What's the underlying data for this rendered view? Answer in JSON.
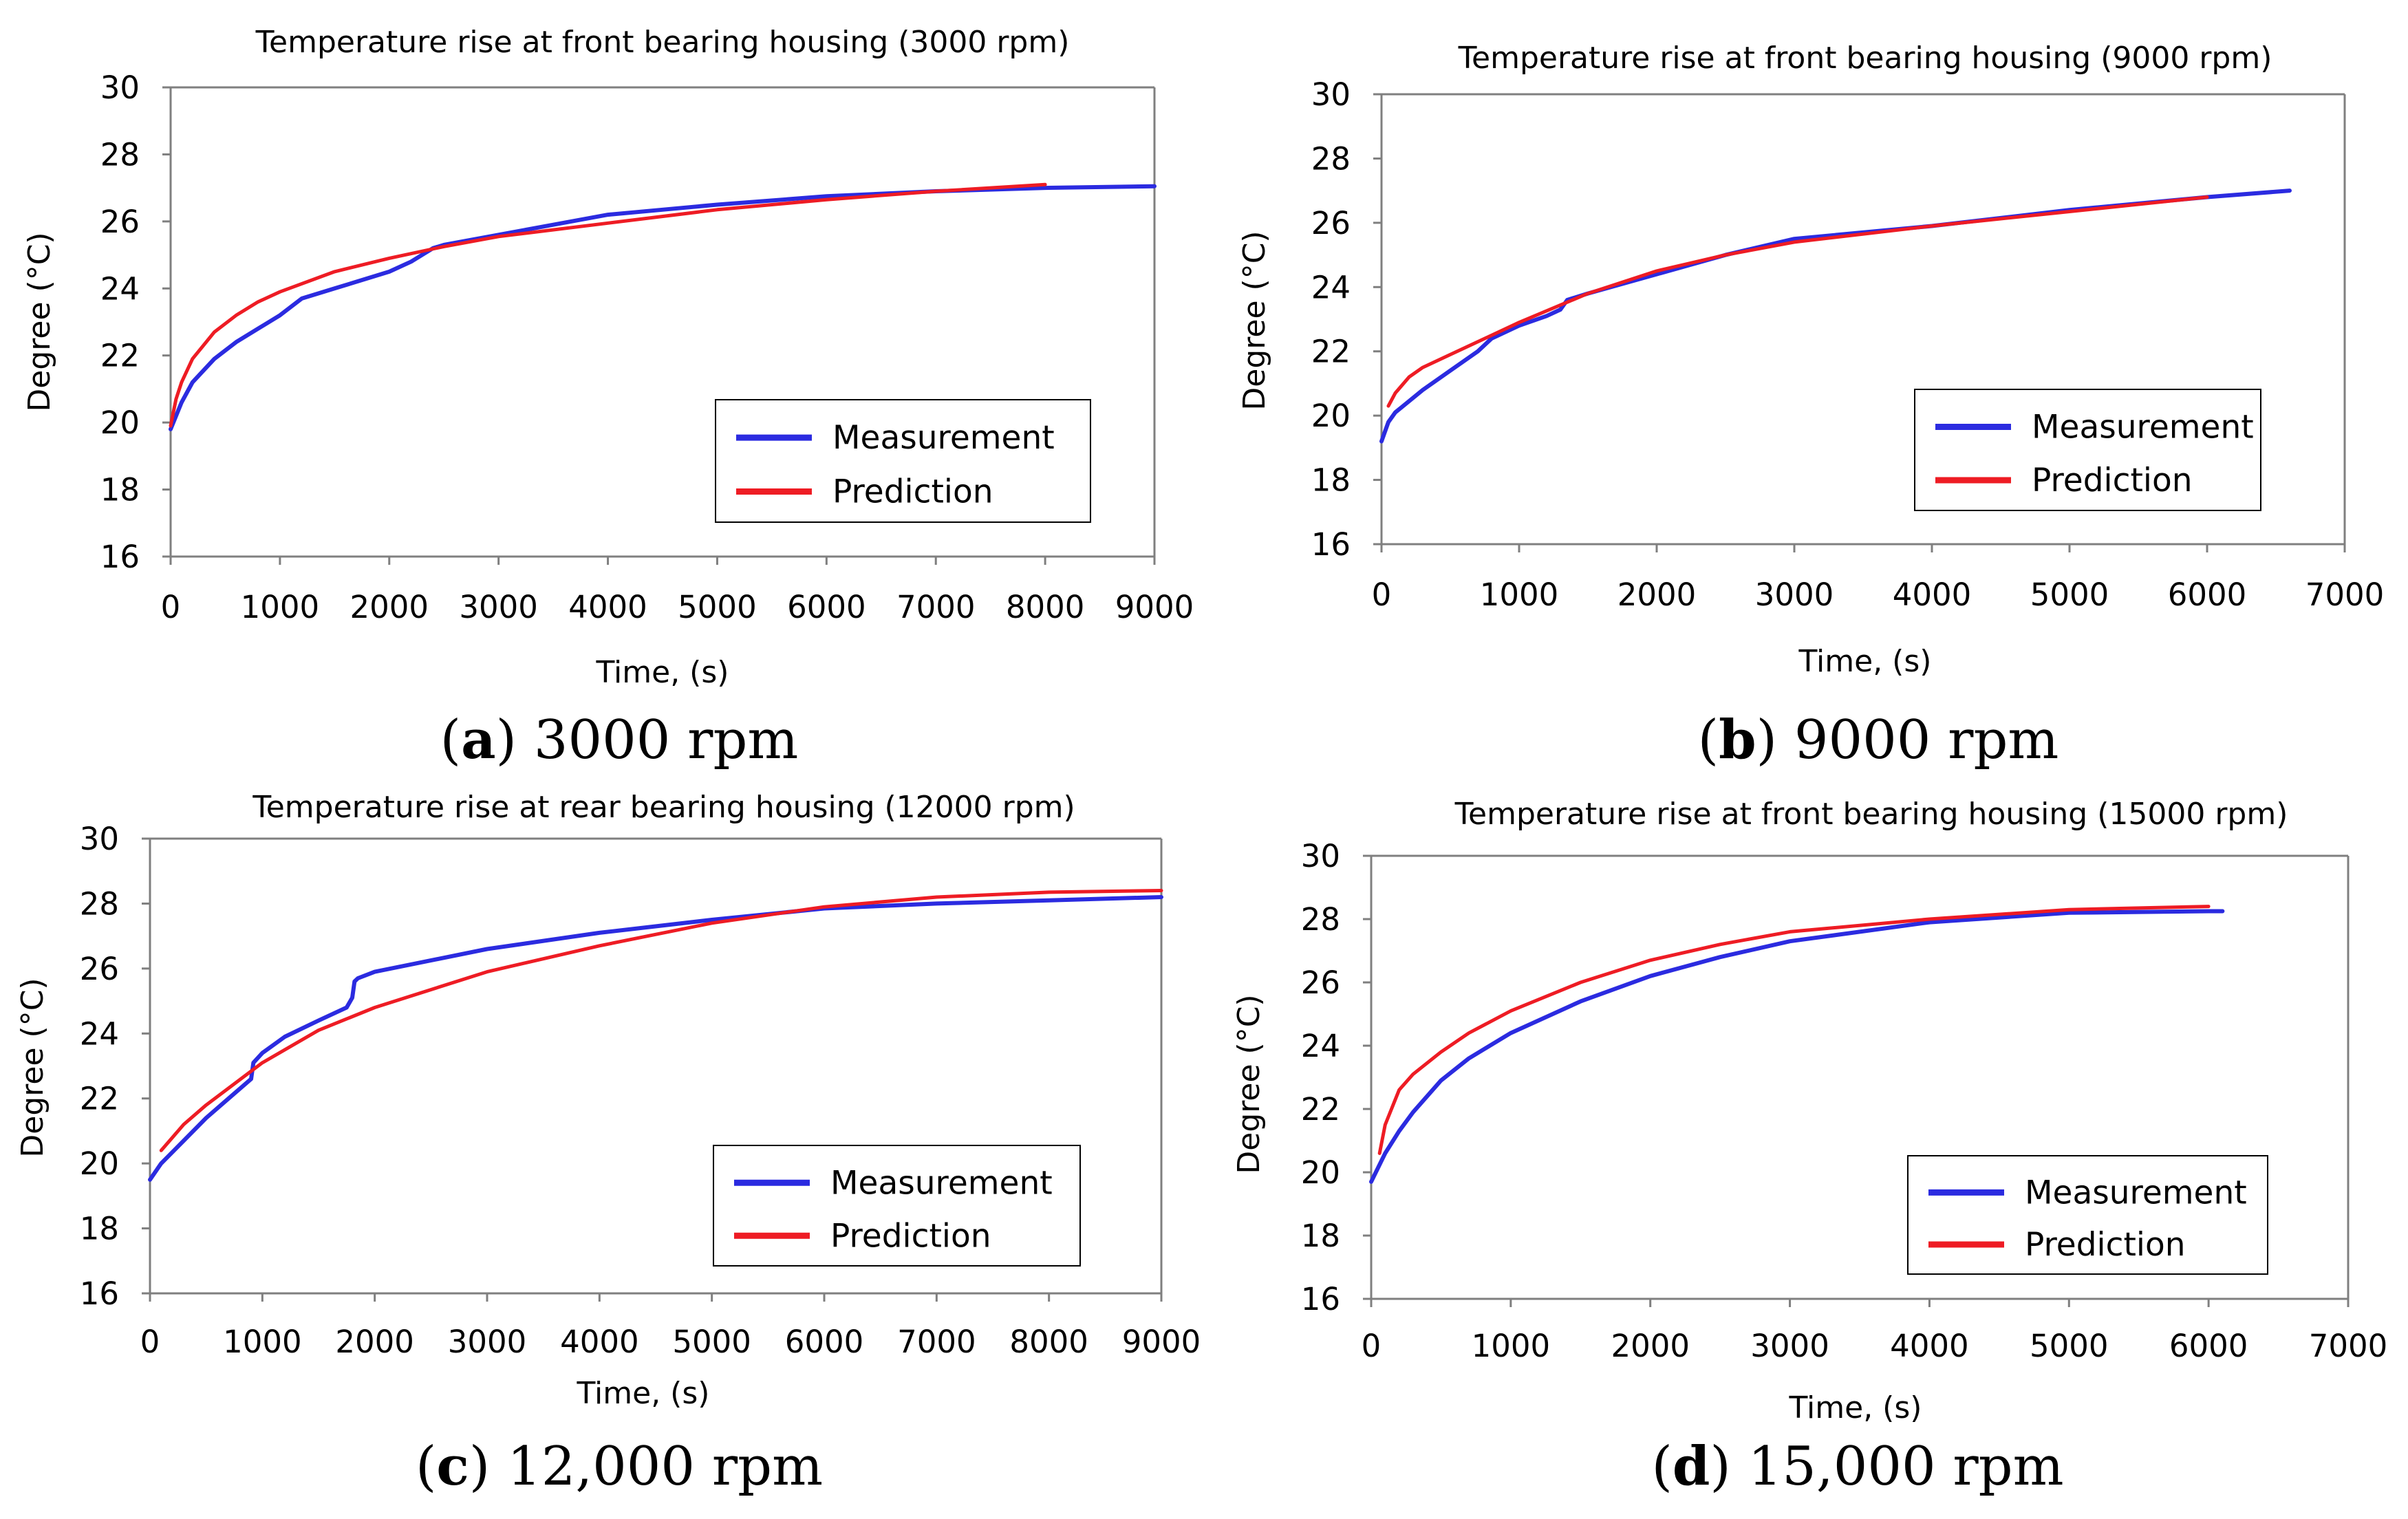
{
  "colors": {
    "measurement": "#2b2be0",
    "prediction": "#ee1c24"
  },
  "chart_data": [
    {
      "id": "a",
      "type": "line",
      "title": "Temperature rise at front bearing housing (3000 rpm)",
      "xlabel": "Time, (s)",
      "ylabel": "Degree (°C)",
      "xlim": [
        0,
        9000
      ],
      "ylim": [
        16,
        30
      ],
      "xticks": [
        "0",
        "1000",
        "2000",
        "3000",
        "4000",
        "5000",
        "6000",
        "7000",
        "8000",
        "9000"
      ],
      "yticks": [
        "16",
        "18",
        "20",
        "22",
        "24",
        "26",
        "28",
        "30"
      ],
      "grid": false,
      "legend_placement": "bottom-right",
      "caption": {
        "letter": "a",
        "text": "3000 rpm"
      },
      "series": [
        {
          "name": "Measurement",
          "x": [
            0,
            100,
            200,
            400,
            600,
            800,
            1000,
            1200,
            1500,
            2000,
            2200,
            2300,
            2400,
            2500,
            3000,
            3500,
            4000,
            4500,
            5000,
            6000,
            7000,
            8000,
            9000
          ],
          "y": [
            19.8,
            20.6,
            21.2,
            21.9,
            22.4,
            22.8,
            23.2,
            23.7,
            24.0,
            24.5,
            24.8,
            25.0,
            25.2,
            25.3,
            25.6,
            25.9,
            26.2,
            26.35,
            26.5,
            26.75,
            26.9,
            27.0,
            27.05
          ]
        },
        {
          "name": "Prediction",
          "x": [
            0,
            50,
            100,
            200,
            400,
            600,
            800,
            1000,
            1500,
            2000,
            2500,
            3000,
            4000,
            5000,
            6000,
            7000,
            8000
          ],
          "y": [
            19.9,
            20.7,
            21.2,
            21.9,
            22.7,
            23.2,
            23.6,
            23.9,
            24.5,
            24.9,
            25.25,
            25.55,
            25.95,
            26.35,
            26.65,
            26.9,
            27.1
          ]
        }
      ]
    },
    {
      "id": "b",
      "type": "line",
      "title": "Temperature rise at front bearing housing (9000 rpm)",
      "xlabel": "Time, (s)",
      "ylabel": "Degree (°C)",
      "xlim": [
        0,
        7000
      ],
      "ylim": [
        16,
        30
      ],
      "xticks": [
        "0",
        "1000",
        "2000",
        "3000",
        "4000",
        "5000",
        "6000",
        "7000"
      ],
      "yticks": [
        "16",
        "18",
        "20",
        "22",
        "24",
        "26",
        "28",
        "30"
      ],
      "grid": false,
      "legend_placement": "bottom-right",
      "caption": {
        "letter": "b",
        "text": "9000 rpm"
      },
      "series": [
        {
          "name": "Measurement",
          "x": [
            0,
            50,
            100,
            300,
            500,
            700,
            800,
            1000,
            1200,
            1300,
            1350,
            1500,
            2000,
            2500,
            3000,
            4000,
            5000,
            6000,
            6600
          ],
          "y": [
            19.2,
            19.8,
            20.1,
            20.8,
            21.4,
            22.0,
            22.4,
            22.8,
            23.1,
            23.3,
            23.6,
            23.8,
            24.4,
            25.0,
            25.5,
            25.9,
            26.4,
            26.8,
            27.0
          ]
        },
        {
          "name": "Prediction",
          "x": [
            50,
            100,
            200,
            300,
            500,
            1000,
            1500,
            2000,
            2500,
            3000,
            4000,
            5000,
            6000
          ],
          "y": [
            20.3,
            20.7,
            21.2,
            21.5,
            21.9,
            22.9,
            23.8,
            24.5,
            25.0,
            25.4,
            25.9,
            26.35,
            26.8
          ]
        }
      ]
    },
    {
      "id": "c",
      "type": "line",
      "title": "Temperature rise at rear bearing housing (12000 rpm)",
      "xlabel": "Time, (s)",
      "ylabel": "Degree (°C)",
      "xlim": [
        0,
        9000
      ],
      "ylim": [
        16,
        30
      ],
      "xticks": [
        "0",
        "1000",
        "2000",
        "3000",
        "4000",
        "5000",
        "6000",
        "7000",
        "8000",
        "9000"
      ],
      "yticks": [
        "16",
        "18",
        "20",
        "22",
        "24",
        "26",
        "28",
        "30"
      ],
      "grid": false,
      "legend_placement": "bottom-right",
      "caption": {
        "letter": "c",
        "text": "12,000 rpm"
      },
      "series": [
        {
          "name": "Measurement",
          "x": [
            0,
            100,
            300,
            500,
            700,
            900,
            920,
            1000,
            1200,
            1500,
            1750,
            1800,
            1820,
            1850,
            2000,
            3000,
            4000,
            5000,
            6000,
            7000,
            8000,
            9000
          ],
          "y": [
            19.5,
            20.0,
            20.7,
            21.4,
            22.0,
            22.6,
            23.1,
            23.4,
            23.9,
            24.4,
            24.8,
            25.1,
            25.6,
            25.7,
            25.9,
            26.6,
            27.1,
            27.5,
            27.85,
            28.0,
            28.1,
            28.2
          ]
        },
        {
          "name": "Prediction",
          "x": [
            100,
            300,
            500,
            1000,
            1500,
            2000,
            3000,
            4000,
            5000,
            6000,
            7000,
            8000,
            9000
          ],
          "y": [
            20.4,
            21.2,
            21.8,
            23.1,
            24.1,
            24.8,
            25.9,
            26.7,
            27.4,
            27.9,
            28.2,
            28.35,
            28.4
          ]
        }
      ]
    },
    {
      "id": "d",
      "type": "line",
      "title": "Temperature rise at front bearing housing (15000 rpm)",
      "xlabel": "Time, (s)",
      "ylabel": "Degree (°C)",
      "xlim": [
        0,
        7000
      ],
      "ylim": [
        16,
        30
      ],
      "xticks": [
        "0",
        "1000",
        "2000",
        "3000",
        "4000",
        "5000",
        "6000",
        "7000"
      ],
      "yticks": [
        "16",
        "18",
        "20",
        "22",
        "24",
        "26",
        "28",
        "30"
      ],
      "grid": false,
      "legend_placement": "bottom-right",
      "caption": {
        "letter": "d",
        "text": "15,000 rpm"
      },
      "series": [
        {
          "name": "Measurement",
          "x": [
            0,
            100,
            200,
            300,
            500,
            700,
            1000,
            1500,
            2000,
            2500,
            3000,
            4000,
            5000,
            6000,
            6100
          ],
          "y": [
            19.7,
            20.6,
            21.3,
            21.9,
            22.9,
            23.6,
            24.4,
            25.4,
            26.2,
            26.8,
            27.3,
            27.9,
            28.2,
            28.25,
            28.25
          ]
        },
        {
          "name": "Prediction",
          "x": [
            60,
            100,
            200,
            300,
            500,
            700,
            1000,
            1500,
            2000,
            2500,
            3000,
            4000,
            5000,
            6000
          ],
          "y": [
            20.6,
            21.5,
            22.6,
            23.1,
            23.8,
            24.4,
            25.1,
            26.0,
            26.7,
            27.2,
            27.6,
            28.0,
            28.3,
            28.4
          ]
        }
      ]
    }
  ]
}
